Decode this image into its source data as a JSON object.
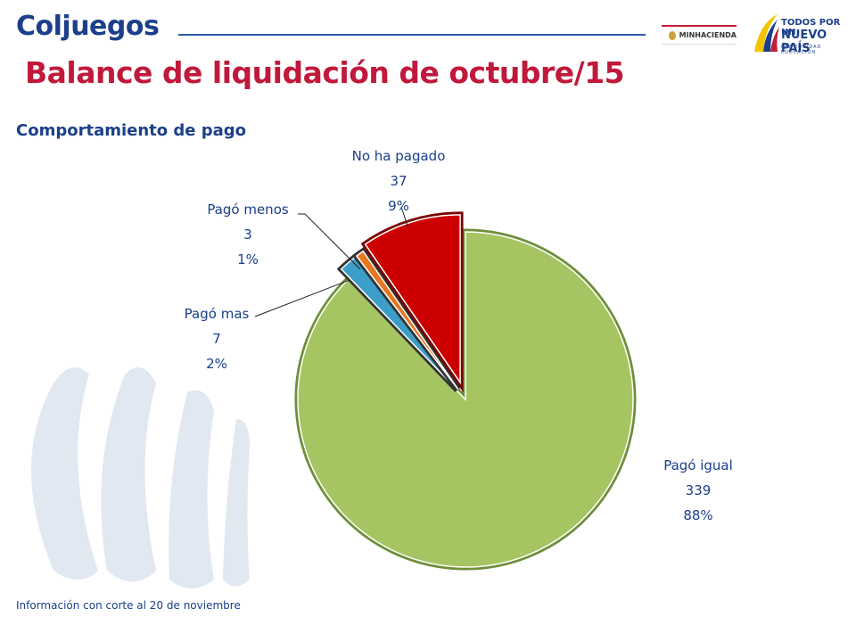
{
  "header": {
    "logo_text": "Coljuegos",
    "ministry": "MINHACIENDA",
    "gov_line1": "TODOS POR UN",
    "gov_line2": "NUEVO PAÍS",
    "gov_line3": "PAZ   EQUIDAD   EDUCACIÓN"
  },
  "title": "Balance de liquidación de octubre/15",
  "subtitle": "Comportamiento de pago",
  "footer": "Información con corte al 20 de noviembre",
  "chart_data": {
    "type": "pie",
    "title": "",
    "legend": "none",
    "slices": [
      {
        "name": "Pagó igual",
        "value": 339,
        "percent": "88%",
        "color": "#a5c563"
      },
      {
        "name": "Pagó mas",
        "value": 7,
        "percent": "2%",
        "color": "#3c9ec8"
      },
      {
        "name": "Pagó menos",
        "value": 3,
        "percent": "1%",
        "color": "#e87722"
      },
      {
        "name": "No ha pagado",
        "value": 37,
        "percent": "9%",
        "color": "#cc0000"
      }
    ]
  }
}
